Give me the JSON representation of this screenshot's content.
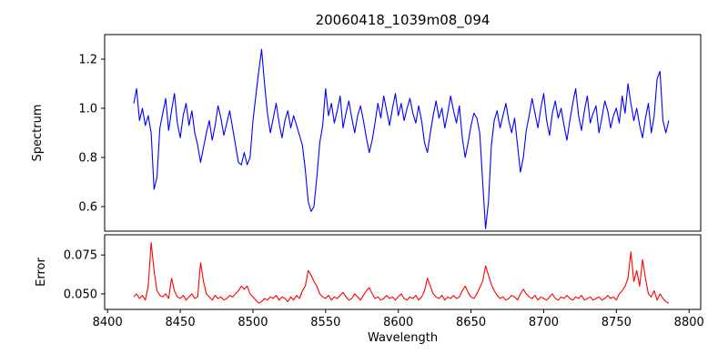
{
  "chart_data": {
    "type": "line",
    "title": "20060418_1039m08_094",
    "xlabel": "Wavelength",
    "xlim": [
      8398,
      8808
    ],
    "xticks": [
      8400,
      8450,
      8500,
      8550,
      8600,
      8650,
      8700,
      8750,
      8800
    ],
    "xtick_labels": [
      "8400",
      "8450",
      "8500",
      "8550",
      "8600",
      "8650",
      "8700",
      "8750",
      "8800"
    ],
    "x_start": 8418,
    "x_step": 2,
    "grid": false,
    "legend": "none",
    "panels": [
      {
        "name": "spectrum",
        "ylabel": "Spectrum",
        "color": "#0000ff",
        "ylim": [
          0.5,
          1.3
        ],
        "yticks": [
          0.6,
          0.8,
          1.0,
          1.2
        ],
        "ytick_labels": [
          "0.6",
          "0.8",
          "1.0",
          "1.2"
        ],
        "values": [
          1.02,
          1.08,
          0.95,
          1.0,
          0.93,
          0.97,
          0.9,
          0.67,
          0.72,
          0.92,
          0.98,
          1.04,
          0.91,
          0.99,
          1.06,
          0.94,
          0.88,
          0.97,
          1.02,
          0.93,
          0.99,
          0.9,
          0.85,
          0.78,
          0.84,
          0.9,
          0.95,
          0.87,
          0.93,
          1.01,
          0.96,
          0.89,
          0.94,
          0.99,
          0.92,
          0.85,
          0.78,
          0.77,
          0.82,
          0.77,
          0.8,
          0.95,
          1.05,
          1.15,
          1.24,
          1.1,
          0.98,
          0.9,
          0.96,
          1.02,
          0.94,
          0.88,
          0.95,
          0.99,
          0.92,
          0.97,
          0.93,
          0.89,
          0.85,
          0.75,
          0.62,
          0.58,
          0.6,
          0.72,
          0.86,
          0.93,
          1.08,
          0.97,
          1.02,
          0.94,
          0.99,
          1.05,
          0.92,
          0.98,
          1.03,
          0.96,
          0.9,
          0.97,
          1.01,
          0.95,
          0.88,
          0.82,
          0.87,
          0.94,
          1.02,
          0.96,
          1.05,
          0.99,
          0.93,
          1.0,
          1.06,
          0.97,
          1.02,
          0.95,
          1.0,
          1.04,
          0.98,
          0.94,
          1.01,
          0.95,
          0.86,
          0.82,
          0.9,
          0.97,
          1.03,
          0.96,
          1.0,
          0.92,
          0.98,
          1.05,
          0.99,
          0.94,
          1.01,
          0.88,
          0.8,
          0.86,
          0.93,
          0.98,
          0.96,
          0.9,
          0.7,
          0.51,
          0.62,
          0.85,
          0.95,
          0.99,
          0.92,
          0.97,
          1.02,
          0.95,
          0.9,
          0.96,
          0.85,
          0.74,
          0.8,
          0.91,
          0.97,
          1.04,
          0.98,
          0.92,
          1.0,
          1.06,
          0.95,
          0.89,
          0.98,
          1.03,
          0.96,
          1.0,
          0.93,
          0.87,
          0.95,
          1.02,
          1.08,
          0.97,
          0.91,
          0.99,
          1.05,
          0.94,
          0.98,
          1.01,
          0.9,
          0.96,
          1.03,
          0.99,
          0.92,
          0.97,
          1.0,
          0.94,
          1.05,
          0.98,
          1.1,
          1.02,
          0.95,
          1.0,
          0.93,
          0.88,
          0.96,
          1.02,
          0.9,
          0.97,
          1.12,
          1.15,
          0.95,
          0.9,
          0.95
        ]
      },
      {
        "name": "error",
        "ylabel": "Error",
        "color": "#ff0000",
        "ylim": [
          0.04,
          0.088
        ],
        "yticks": [
          0.05,
          0.075
        ],
        "ytick_labels": [
          "0.050",
          "0.075"
        ],
        "values": [
          0.048,
          0.05,
          0.047,
          0.049,
          0.046,
          0.055,
          0.083,
          0.065,
          0.052,
          0.049,
          0.048,
          0.05,
          0.047,
          0.06,
          0.052,
          0.048,
          0.047,
          0.049,
          0.046,
          0.048,
          0.05,
          0.047,
          0.048,
          0.07,
          0.058,
          0.05,
          0.048,
          0.046,
          0.049,
          0.047,
          0.048,
          0.046,
          0.047,
          0.049,
          0.048,
          0.05,
          0.052,
          0.055,
          0.053,
          0.055,
          0.05,
          0.048,
          0.046,
          0.044,
          0.045,
          0.047,
          0.046,
          0.048,
          0.047,
          0.049,
          0.046,
          0.048,
          0.047,
          0.045,
          0.048,
          0.046,
          0.049,
          0.047,
          0.052,
          0.055,
          0.065,
          0.062,
          0.058,
          0.055,
          0.05,
          0.048,
          0.047,
          0.049,
          0.046,
          0.048,
          0.047,
          0.049,
          0.051,
          0.048,
          0.046,
          0.047,
          0.05,
          0.048,
          0.046,
          0.049,
          0.052,
          0.054,
          0.05,
          0.047,
          0.048,
          0.046,
          0.047,
          0.049,
          0.047,
          0.048,
          0.046,
          0.048,
          0.05,
          0.047,
          0.046,
          0.048,
          0.047,
          0.049,
          0.046,
          0.048,
          0.052,
          0.06,
          0.055,
          0.05,
          0.048,
          0.047,
          0.049,
          0.046,
          0.048,
          0.047,
          0.049,
          0.047,
          0.048,
          0.052,
          0.055,
          0.051,
          0.048,
          0.047,
          0.05,
          0.054,
          0.058,
          0.068,
          0.062,
          0.056,
          0.052,
          0.049,
          0.047,
          0.048,
          0.046,
          0.047,
          0.049,
          0.048,
          0.046,
          0.05,
          0.053,
          0.05,
          0.048,
          0.047,
          0.049,
          0.046,
          0.048,
          0.047,
          0.046,
          0.048,
          0.05,
          0.047,
          0.046,
          0.048,
          0.047,
          0.049,
          0.047,
          0.046,
          0.048,
          0.047,
          0.049,
          0.046,
          0.047,
          0.048,
          0.046,
          0.047,
          0.048,
          0.046,
          0.047,
          0.049,
          0.047,
          0.048,
          0.046,
          0.05,
          0.052,
          0.055,
          0.06,
          0.077,
          0.058,
          0.065,
          0.055,
          0.072,
          0.06,
          0.05,
          0.048,
          0.052,
          0.046,
          0.05,
          0.047,
          0.045,
          0.044
        ]
      }
    ]
  }
}
